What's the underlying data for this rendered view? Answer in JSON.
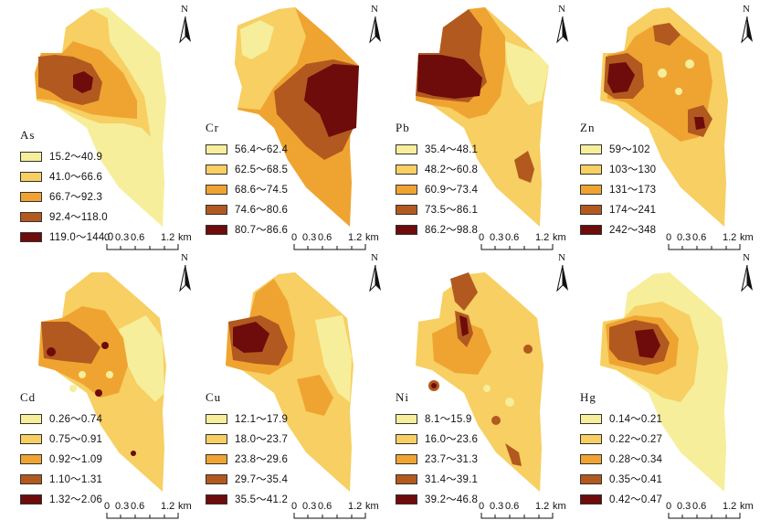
{
  "north_letter": "N",
  "scale": {
    "ticks": [
      "0",
      "0.3",
      "0.6",
      "1.2"
    ],
    "unit": "km"
  },
  "colors": [
    "#f6ee9a",
    "#f7cf62",
    "#efa431",
    "#b2591f",
    "#6e0b0b"
  ],
  "panels": [
    {
      "name": "As",
      "ranges": [
        "15.2～40.9",
        "41.0～66.6",
        "66.7～92.3",
        "92.4～118.0",
        "119.0～144.0"
      ]
    },
    {
      "name": "Cr",
      "ranges": [
        "56.4～62.4",
        "62.5～68.5",
        "68.6～74.5",
        "74.6～80.6",
        "80.7～86.6"
      ]
    },
    {
      "name": "Pb",
      "ranges": [
        "35.4～48.1",
        "48.2～60.8",
        "60.9～73.4",
        "73.5～86.1",
        "86.2～98.8"
      ]
    },
    {
      "name": "Zn",
      "ranges": [
        "59～102",
        "103～130",
        "131～173",
        "174～241",
        "242～348"
      ]
    },
    {
      "name": "Cd",
      "ranges": [
        "0.26～0.74",
        "0.75～0.91",
        "0.92～1.09",
        "1.10～1.31",
        "1.32～2.06"
      ]
    },
    {
      "name": "Cu",
      "ranges": [
        "12.1～17.9",
        "18.0～23.7",
        "23.8～29.6",
        "29.7～35.4",
        "35.5～41.2"
      ]
    },
    {
      "name": "Ni",
      "ranges": [
        "8.1～15.9",
        "16.0～23.6",
        "23.7～31.3",
        "31.4～39.1",
        "39.2～46.8"
      ]
    },
    {
      "name": "Hg",
      "ranges": [
        "0.14～0.21",
        "0.22～0.27",
        "0.28～0.34",
        "0.35～0.41",
        "0.42～0.47"
      ]
    }
  ]
}
